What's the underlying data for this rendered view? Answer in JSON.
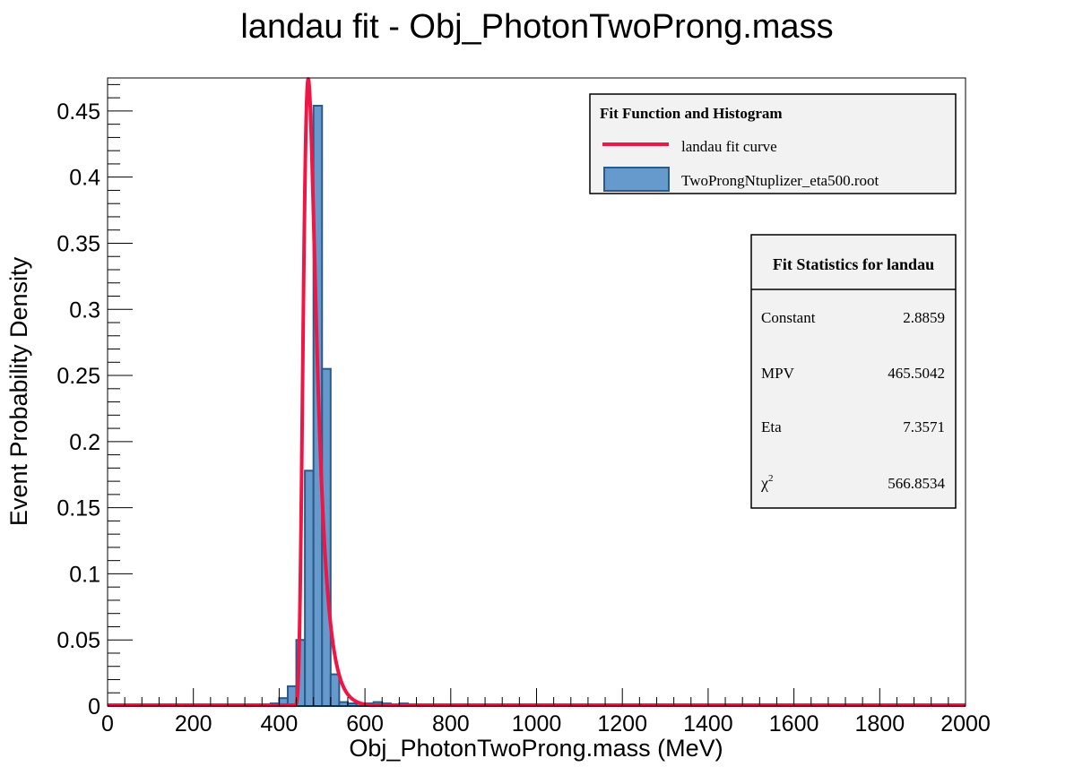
{
  "chart_data": {
    "type": "bar",
    "title": "landau fit - Obj_PhotonTwoProng.mass",
    "xlabel": "Obj_PhotonTwoProng.mass (MeV)",
    "ylabel": "Event Probability Density",
    "xlim": [
      0,
      2000
    ],
    "ylim": [
      0,
      0.475
    ],
    "x_ticks": [
      0,
      200,
      400,
      600,
      800,
      1000,
      1200,
      1400,
      1600,
      1800,
      2000
    ],
    "y_ticks": [
      0,
      0.05,
      0.1,
      0.15,
      0.2,
      0.25,
      0.3,
      0.35,
      0.4,
      0.45
    ],
    "x_tick_labels": [
      "0",
      "200",
      "400",
      "600",
      "800",
      "1000",
      "1200",
      "1400",
      "1600",
      "1800",
      "2000"
    ],
    "y_tick_labels": [
      "0",
      "0.05",
      "0.1",
      "0.15",
      "0.2",
      "0.25",
      "0.3",
      "0.35",
      "0.4",
      "0.45"
    ],
    "grid": false,
    "histogram": {
      "name": "TwoProngNtuplizer_eta500.root",
      "bin_width": 20,
      "bins": [
        {
          "x": 240,
          "y": 0.001
        },
        {
          "x": 360,
          "y": 0.001
        },
        {
          "x": 380,
          "y": 0.002
        },
        {
          "x": 400,
          "y": 0.006
        },
        {
          "x": 420,
          "y": 0.015
        },
        {
          "x": 440,
          "y": 0.05
        },
        {
          "x": 460,
          "y": 0.178
        },
        {
          "x": 480,
          "y": 0.454
        },
        {
          "x": 500,
          "y": 0.255
        },
        {
          "x": 520,
          "y": 0.024
        },
        {
          "x": 540,
          "y": 0.003
        },
        {
          "x": 560,
          "y": 0.002
        },
        {
          "x": 580,
          "y": 0.002
        },
        {
          "x": 600,
          "y": 0.002
        },
        {
          "x": 620,
          "y": 0.003
        },
        {
          "x": 640,
          "y": 0.002
        },
        {
          "x": 660,
          "y": 0.001
        },
        {
          "x": 680,
          "y": 0.002
        },
        {
          "x": 700,
          "y": 0.001
        },
        {
          "x": 720,
          "y": 0.001
        },
        {
          "x": 740,
          "y": 0.001
        },
        {
          "x": 760,
          "y": 0.001
        },
        {
          "x": 1200,
          "y": 0.001
        },
        {
          "x": 1640,
          "y": 0.001
        }
      ]
    },
    "fit_curve": {
      "name": "landau fit curve",
      "function": "landau",
      "parameters": {
        "Constant": 2.8859,
        "MPV": 465.5042,
        "Eta": 7.3571
      },
      "x_range": [
        0,
        2000
      ]
    },
    "legend": {
      "placement": "top-right",
      "header": "Fit Function and Histogram",
      "entries": [
        {
          "label": "landau fit curve",
          "color": "#ef1544"
        },
        {
          "label": "TwoProngNtuplizer_eta500.root",
          "color": "#6699cc"
        }
      ]
    },
    "stats_box": {
      "placement": "right",
      "header": "Fit Statistics for landau",
      "rows": [
        {
          "label": "Constant",
          "value": "2.8859"
        },
        {
          "label": "MPV",
          "value": "465.5042"
        },
        {
          "label": "Eta",
          "value": "7.3571"
        },
        {
          "label": "χ",
          "sup": "2",
          "value": "566.8534"
        }
      ]
    },
    "colors": {
      "hist_fill": "#6699cc",
      "hist_line": "#2b5a88",
      "fit_line": "#ef1544",
      "box_fill": "#f2f2f2"
    }
  }
}
